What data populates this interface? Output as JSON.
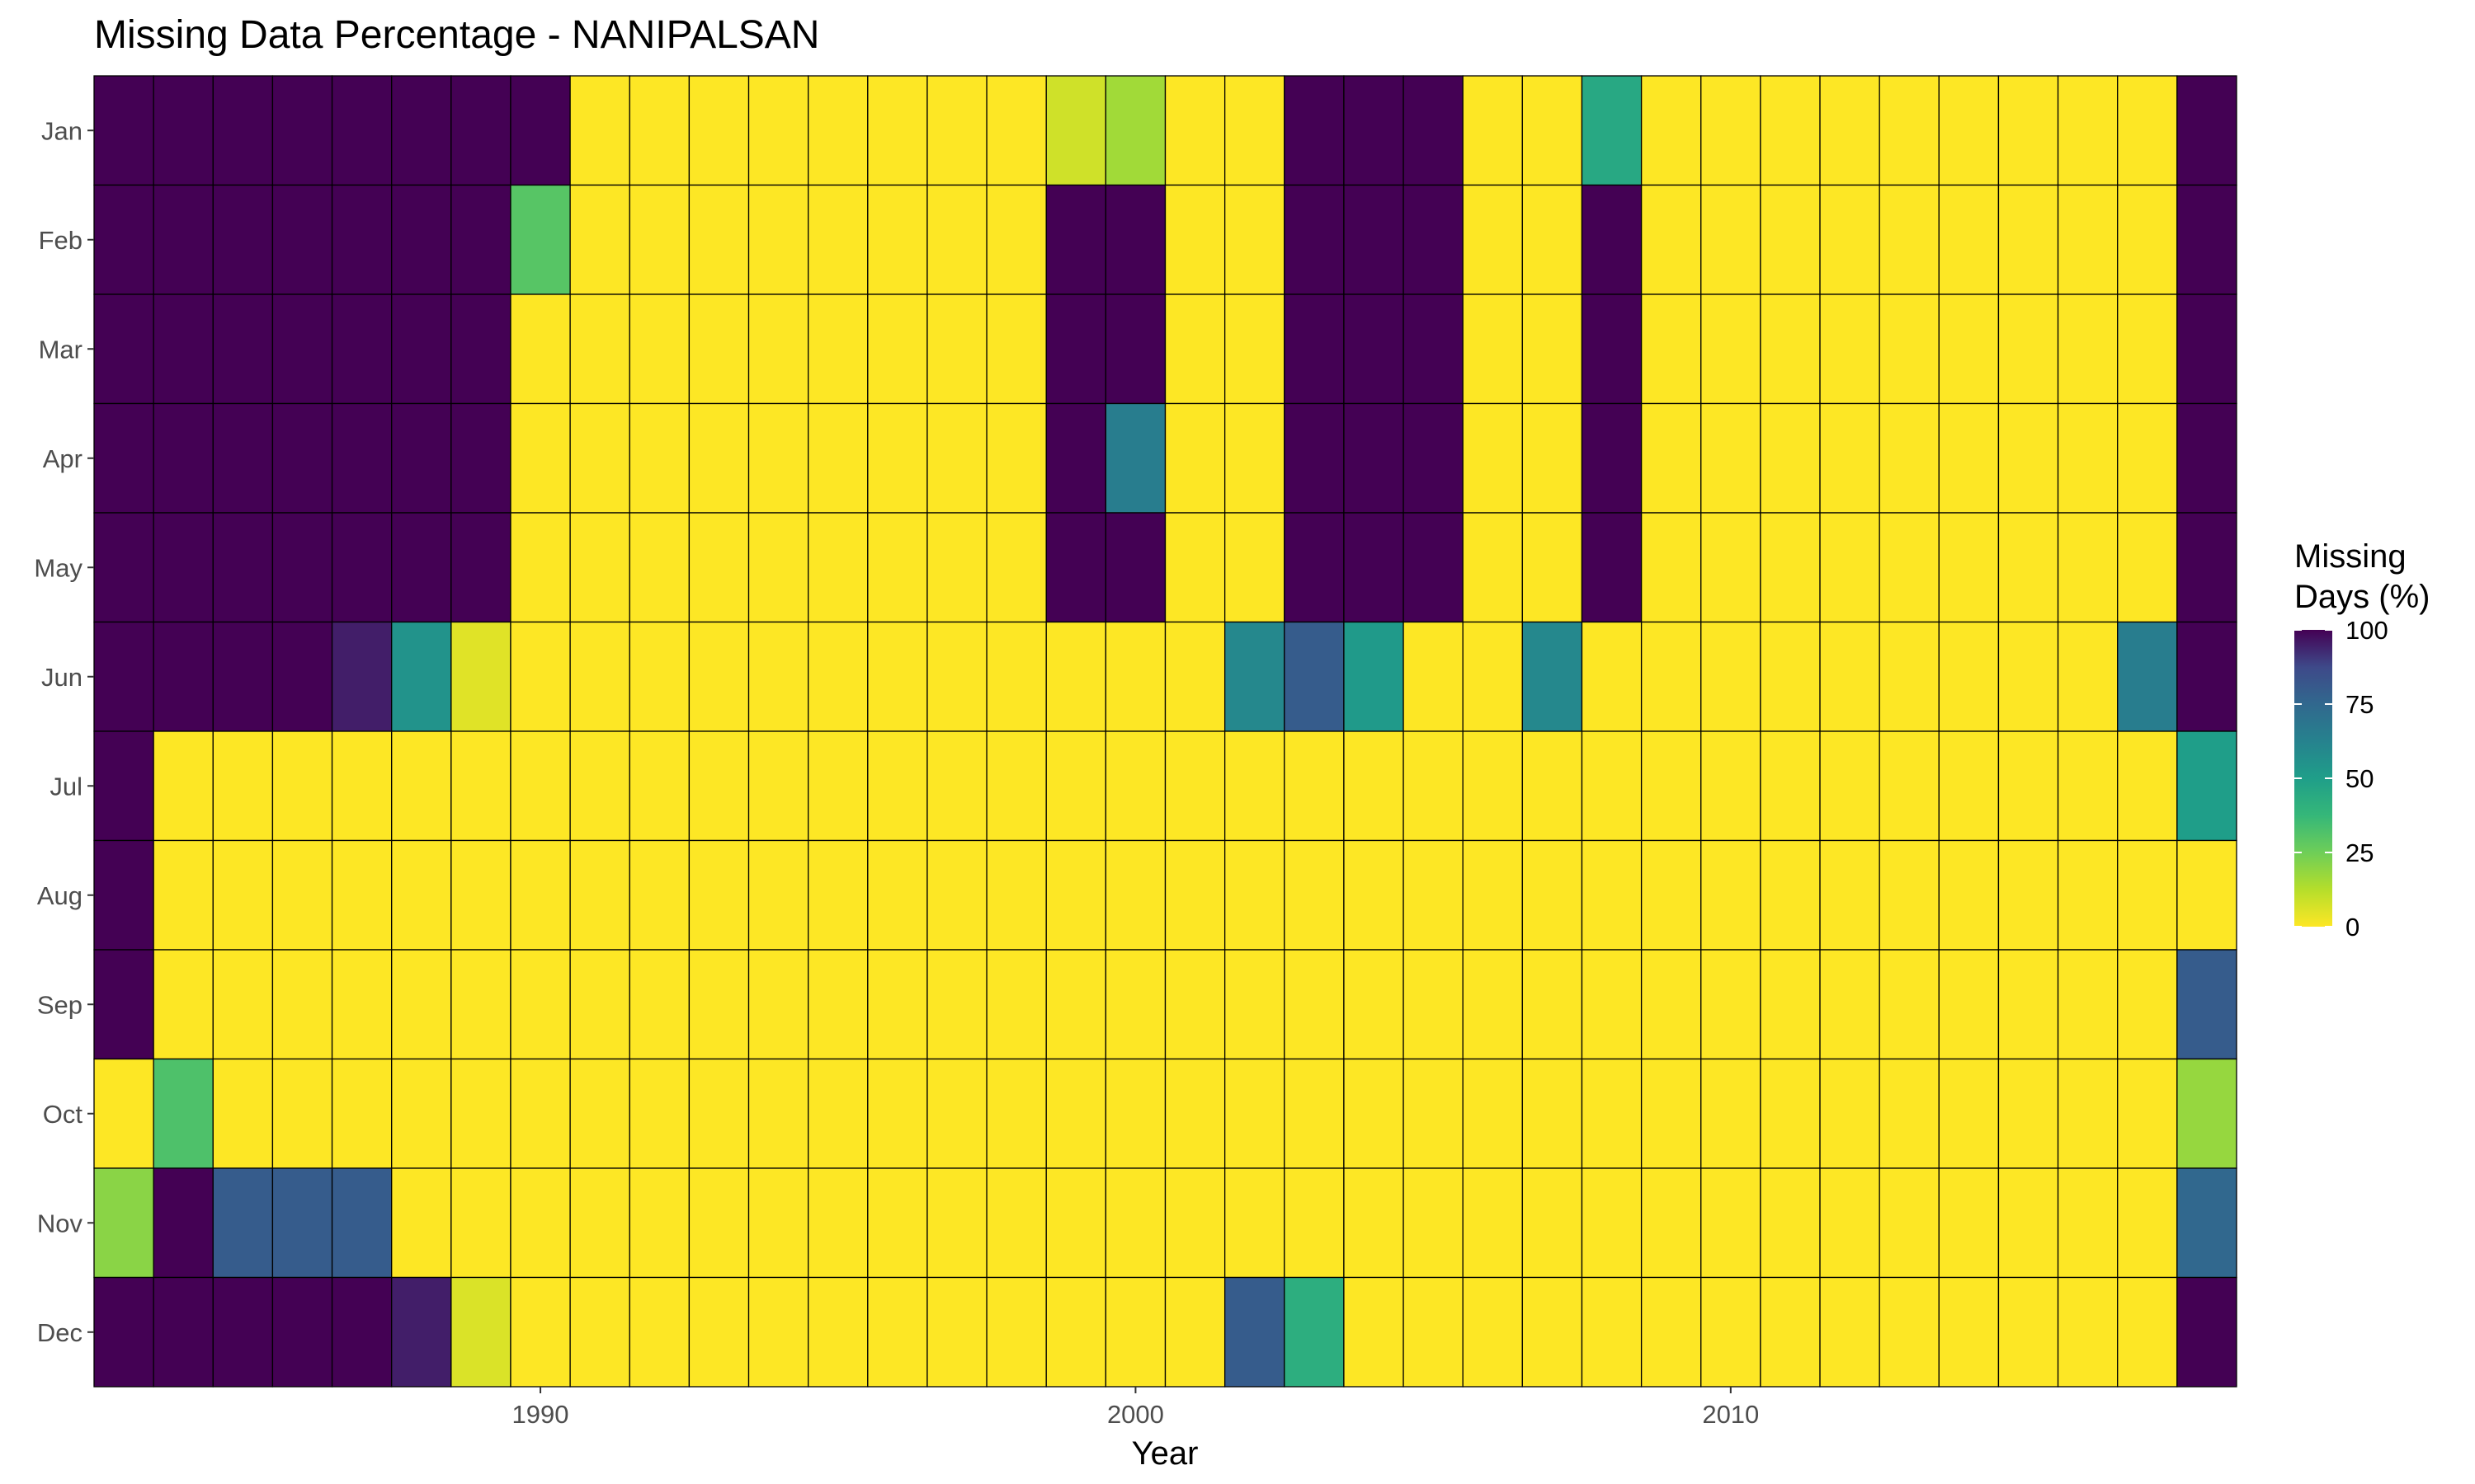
{
  "chart_data": {
    "type": "heatmap",
    "title": "Missing Data Percentage - NANIPALSAN",
    "xlabel": "Year",
    "ylabel": "",
    "x_ticks": [
      1990,
      2000,
      2010
    ],
    "years": [
      1983,
      1984,
      1985,
      1986,
      1987,
      1988,
      1989,
      1990,
      1991,
      1992,
      1993,
      1994,
      1995,
      1996,
      1997,
      1998,
      1999,
      2000,
      2001,
      2002,
      2003,
      2004,
      2005,
      2006,
      2007,
      2008,
      2009,
      2010,
      2011,
      2012,
      2013,
      2014,
      2015,
      2016,
      2017,
      2018
    ],
    "months": [
      "Jan",
      "Feb",
      "Mar",
      "Apr",
      "May",
      "Jun",
      "Jul",
      "Aug",
      "Sep",
      "Oct",
      "Nov",
      "Dec"
    ],
    "values": [
      [
        100,
        100,
        100,
        100,
        100,
        100,
        100,
        100,
        0,
        0,
        0,
        0,
        0,
        0,
        0,
        0,
        8,
        16,
        0,
        0,
        100,
        100,
        100,
        0,
        0,
        45,
        0,
        0,
        0,
        0,
        0,
        0,
        0,
        0,
        0,
        100
      ],
      [
        100,
        100,
        100,
        100,
        100,
        100,
        100,
        30,
        0,
        0,
        0,
        0,
        0,
        0,
        0,
        0,
        100,
        100,
        0,
        0,
        100,
        100,
        100,
        0,
        0,
        100,
        0,
        0,
        0,
        0,
        0,
        0,
        0,
        0,
        0,
        100
      ],
      [
        100,
        100,
        100,
        100,
        100,
        100,
        100,
        0,
        0,
        0,
        0,
        0,
        0,
        0,
        0,
        0,
        100,
        100,
        0,
        0,
        100,
        100,
        100,
        0,
        0,
        100,
        0,
        0,
        0,
        0,
        0,
        0,
        0,
        0,
        0,
        100
      ],
      [
        100,
        100,
        100,
        100,
        100,
        100,
        100,
        0,
        0,
        0,
        0,
        0,
        0,
        0,
        0,
        0,
        100,
        65,
        0,
        0,
        100,
        100,
        100,
        0,
        0,
        100,
        0,
        0,
        0,
        0,
        0,
        0,
        0,
        0,
        0,
        100
      ],
      [
        100,
        100,
        100,
        100,
        100,
        100,
        100,
        0,
        0,
        0,
        0,
        0,
        0,
        0,
        0,
        0,
        100,
        100,
        0,
        0,
        100,
        100,
        100,
        0,
        0,
        100,
        0,
        0,
        0,
        0,
        0,
        0,
        0,
        0,
        0,
        100
      ],
      [
        100,
        100,
        100,
        100,
        95,
        55,
        5,
        0,
        0,
        0,
        0,
        0,
        0,
        0,
        0,
        0,
        0,
        0,
        0,
        60,
        80,
        52,
        0,
        0,
        60,
        0,
        0,
        0,
        0,
        0,
        0,
        0,
        0,
        0,
        65,
        100
      ],
      [
        100,
        0,
        0,
        0,
        0,
        0,
        0,
        0,
        0,
        0,
        0,
        0,
        0,
        0,
        0,
        0,
        0,
        0,
        0,
        0,
        0,
        0,
        0,
        0,
        0,
        0,
        0,
        0,
        0,
        0,
        0,
        0,
        0,
        0,
        0,
        50
      ],
      [
        100,
        0,
        0,
        0,
        0,
        0,
        0,
        0,
        0,
        0,
        0,
        0,
        0,
        0,
        0,
        0,
        0,
        0,
        0,
        0,
        0,
        0,
        0,
        0,
        0,
        0,
        0,
        0,
        0,
        0,
        0,
        0,
        0,
        0,
        0,
        0
      ],
      [
        100,
        0,
        0,
        0,
        0,
        0,
        0,
        0,
        0,
        0,
        0,
        0,
        0,
        0,
        0,
        0,
        0,
        0,
        0,
        0,
        0,
        0,
        0,
        0,
        0,
        0,
        0,
        0,
        0,
        0,
        0,
        0,
        0,
        0,
        0,
        80
      ],
      [
        0,
        32,
        0,
        0,
        0,
        0,
        0,
        0,
        0,
        0,
        0,
        0,
        0,
        0,
        0,
        0,
        0,
        0,
        0,
        0,
        0,
        0,
        0,
        0,
        0,
        0,
        0,
        0,
        0,
        0,
        0,
        0,
        0,
        0,
        0,
        18
      ],
      [
        20,
        100,
        80,
        80,
        80,
        0,
        0,
        0,
        0,
        0,
        0,
        0,
        0,
        0,
        0,
        0,
        0,
        0,
        0,
        0,
        0,
        0,
        0,
        0,
        0,
        0,
        0,
        0,
        0,
        0,
        0,
        0,
        0,
        0,
        0,
        75
      ],
      [
        100,
        100,
        100,
        100,
        100,
        95,
        6,
        0,
        0,
        0,
        0,
        0,
        0,
        0,
        0,
        0,
        0,
        0,
        0,
        80,
        42,
        0,
        0,
        0,
        0,
        0,
        0,
        0,
        0,
        0,
        0,
        0,
        0,
        0,
        0,
        100
      ]
    ],
    "scale": {
      "min": 0,
      "max": 100,
      "palette": "viridis-reversed"
    },
    "legend": {
      "title_lines": [
        "Missing",
        "Days (%)"
      ],
      "ticks": [
        0,
        25,
        50,
        75,
        100
      ],
      "position": "right"
    },
    "grid": false
  }
}
